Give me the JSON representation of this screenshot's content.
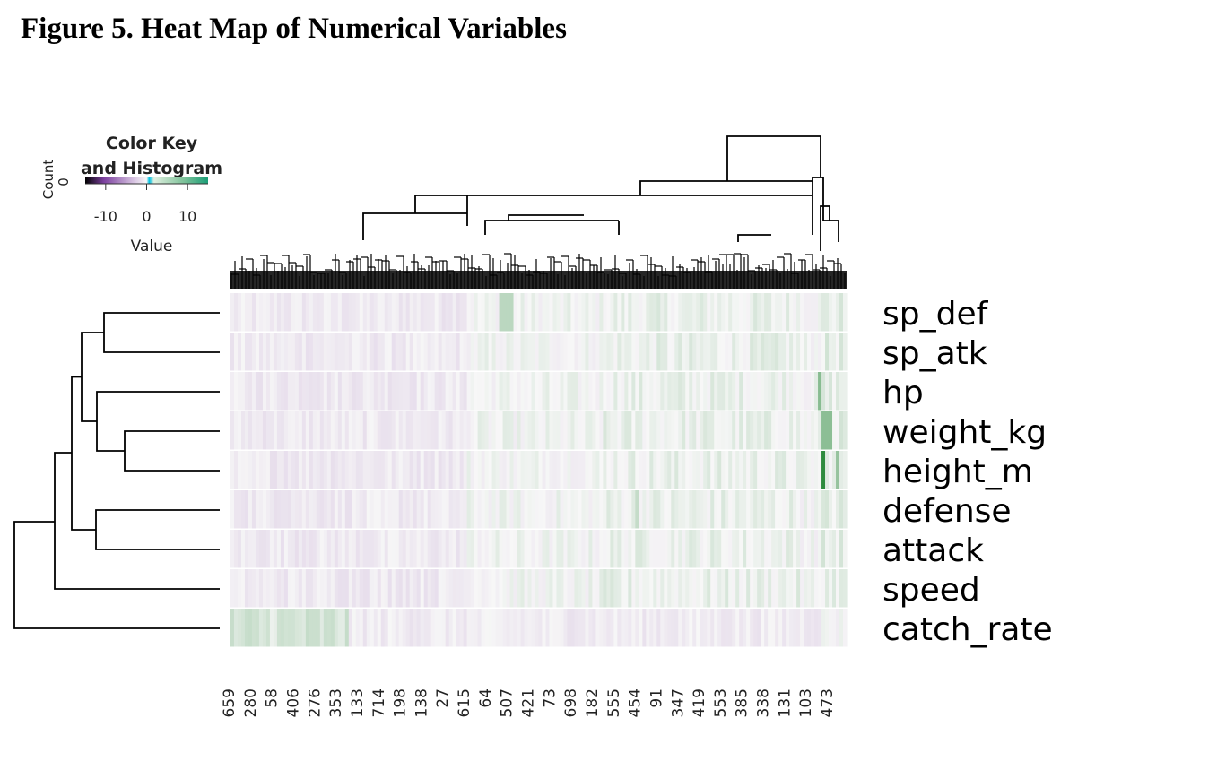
{
  "figure_title": "Figure 5. Heat Map of Numerical Variables",
  "chart_data": {
    "type": "heatmap",
    "title": "Figure 5. Heat Map of Numerical Variables",
    "rows": [
      "sp_def",
      "sp_atk",
      "hp",
      "weight_kg",
      "height_m",
      "defense",
      "attack",
      "speed",
      "catch_rate"
    ],
    "column_labels": [
      "659",
      "280",
      "58",
      "406",
      "276",
      "353",
      "133",
      "714",
      "198",
      "138",
      "27",
      "615",
      "64",
      "507",
      "421",
      "73",
      "698",
      "182",
      "555",
      "454",
      "91",
      "347",
      "419",
      "553",
      "385",
      "338",
      "131",
      "103",
      "473"
    ],
    "color_key": {
      "title_line1": "Color Key",
      "title_line2": "and Histogram",
      "x_label": "Value",
      "y_label": "Count",
      "y_tick": "0",
      "ticks": [
        -10,
        0,
        10
      ],
      "range": [
        -15,
        15
      ],
      "low_color": "#7b3f9e",
      "mid_color": "#f7f7f7",
      "high_color": "#1b7837"
    },
    "row_dendrogram": "present",
    "column_dendrogram": "present"
  }
}
